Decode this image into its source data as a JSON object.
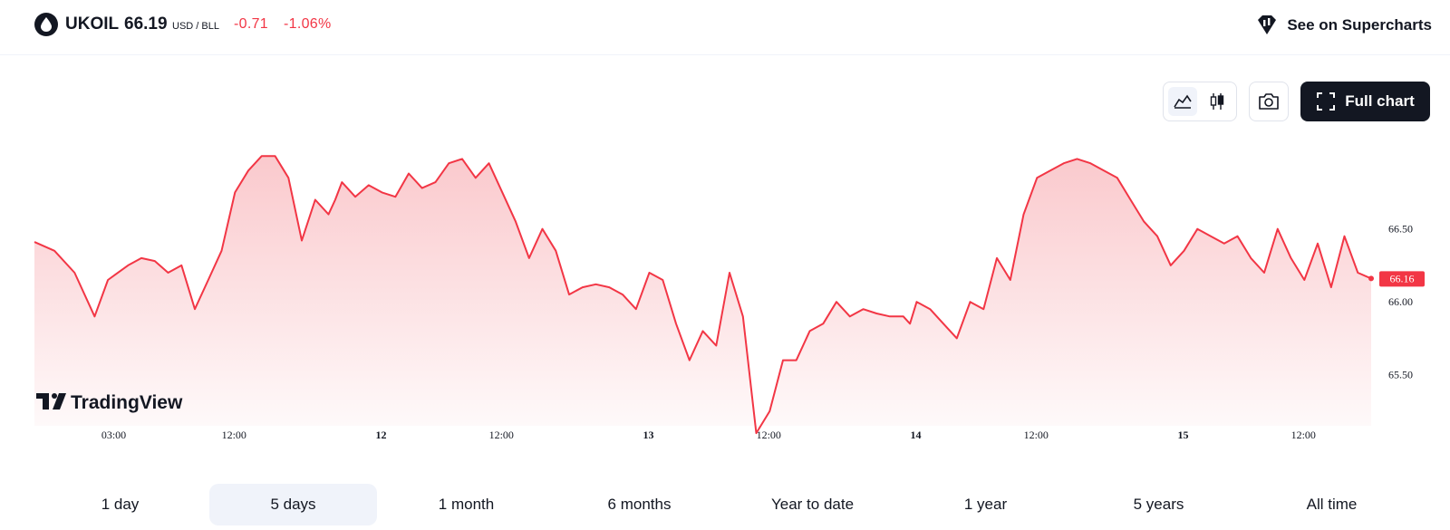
{
  "header": {
    "symbol": "UKOIL",
    "price": "66.19",
    "unit": "USD / BLL",
    "change": "-0.71",
    "change_pct": "-1.06%",
    "supercharts_label": "See on Supercharts",
    "icon": "oil-drop-icon"
  },
  "toolbar": {
    "area_icon": "area-chart-icon",
    "candle_icon": "candlestick-icon",
    "camera_icon": "camera-icon",
    "full_chart_label": "Full chart"
  },
  "watermark": "TradingView",
  "colors": {
    "line": "#f23645",
    "fill_top": "#f7a5ab",
    "down": "#f23645",
    "text": "#131722"
  },
  "chart_data": {
    "type": "area",
    "y_ticks": [
      66.5,
      66.0,
      65.5
    ],
    "ylim": [
      65.15,
      67.15
    ],
    "last_value": 66.16,
    "x_ticks": [
      {
        "label": "03:00",
        "bold": false,
        "t": 0.1
      },
      {
        "label": "12:00",
        "bold": false,
        "t": 0.19
      },
      {
        "label": "12",
        "bold": true,
        "t": 0.3
      },
      {
        "label": "12:00",
        "bold": false,
        "t": 0.39
      },
      {
        "label": "13",
        "bold": true,
        "t": 0.5
      },
      {
        "label": "12:00",
        "bold": false,
        "t": 0.59
      },
      {
        "label": "14",
        "bold": true,
        "t": 0.7
      },
      {
        "label": "12:00",
        "bold": false,
        "t": 0.79
      },
      {
        "label": "15",
        "bold": true,
        "t": 0.9
      },
      {
        "label": "12:00",
        "bold": false,
        "t": 0.99
      }
    ],
    "series": [
      {
        "t": [
          0,
          0.015,
          0.03,
          0.045,
          0.055,
          0.07,
          0.08,
          0.09,
          0.1,
          0.11,
          0.12,
          0.13,
          0.14,
          0.15,
          0.16,
          0.17,
          0.18,
          0.19,
          0.2,
          0.21,
          0.22,
          0.225,
          0.23,
          0.24,
          0.25,
          0.26,
          0.27,
          0.28,
          0.29,
          0.3,
          0.31,
          0.32,
          0.33,
          0.34,
          0.35,
          0.36,
          0.37,
          0.38,
          0.39,
          0.4,
          0.41,
          0.42,
          0.43,
          0.44,
          0.45,
          0.46,
          0.47,
          0.48,
          0.49,
          0.5,
          0.51,
          0.52,
          0.53,
          0.54,
          0.55,
          0.56,
          0.57,
          0.58,
          0.59,
          0.6,
          0.61,
          0.62,
          0.63,
          0.64,
          0.65,
          0.655,
          0.66,
          0.67,
          0.68,
          0.69,
          0.7,
          0.71,
          0.72,
          0.73,
          0.74,
          0.75,
          0.76,
          0.77,
          0.78,
          0.79,
          0.8,
          0.81,
          0.82,
          0.83,
          0.84,
          0.85,
          0.86,
          0.87,
          0.88,
          0.89,
          0.9,
          0.91,
          0.92,
          0.93,
          0.94,
          0.95,
          0.96,
          0.97,
          0.98,
          0.99,
          1.0
        ],
        "y": [
          66.41,
          66.35,
          66.2,
          65.9,
          66.15,
          66.25,
          66.3,
          66.28,
          66.2,
          66.25,
          65.95,
          66.15,
          66.35,
          66.75,
          66.9,
          67.0,
          67.0,
          66.85,
          66.42,
          66.7,
          66.6,
          66.7,
          66.82,
          66.72,
          66.8,
          66.75,
          66.72,
          66.88,
          66.78,
          66.82,
          66.95,
          66.98,
          66.85,
          66.95,
          66.75,
          66.55,
          66.3,
          66.5,
          66.35,
          66.05,
          66.1,
          66.12,
          66.1,
          66.05,
          65.95,
          66.2,
          66.15,
          65.85,
          65.6,
          65.8,
          65.7,
          66.2,
          65.9,
          65.1,
          65.25,
          65.6,
          65.6,
          65.8,
          65.85,
          66.0,
          65.9,
          65.95,
          65.92,
          65.9,
          65.9,
          65.85,
          66.0,
          65.95,
          65.85,
          65.75,
          66.0,
          65.95,
          66.3,
          66.15,
          66.6,
          66.85,
          66.9,
          66.95,
          66.98,
          66.95,
          66.9,
          66.85,
          66.7,
          66.55,
          66.45,
          66.25,
          66.35,
          66.5,
          66.45,
          66.4,
          66.45,
          66.3,
          66.2,
          66.5,
          66.3,
          66.15,
          66.4,
          66.1,
          66.45,
          66.2,
          66.16
        ]
      }
    ]
  },
  "tabs": [
    {
      "label": "1 day",
      "active": false
    },
    {
      "label": "5 days",
      "active": true
    },
    {
      "label": "1 month",
      "active": false
    },
    {
      "label": "6 months",
      "active": false
    },
    {
      "label": "Year to date",
      "active": false
    },
    {
      "label": "1 year",
      "active": false
    },
    {
      "label": "5 years",
      "active": false
    },
    {
      "label": "All time",
      "active": false
    }
  ]
}
